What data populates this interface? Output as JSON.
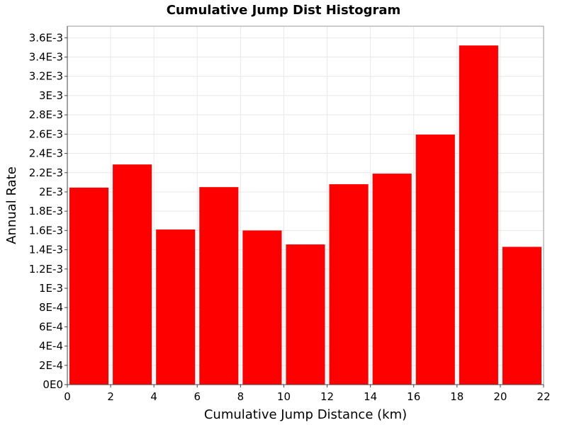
{
  "chart_data": {
    "type": "bar",
    "title": "Cumulative Jump Dist Histogram",
    "xlabel": "Cumulative Jump Distance (km)",
    "ylabel": "Annual Rate",
    "xlim": [
      0,
      22
    ],
    "ylim": [
      0,
      0.00372
    ],
    "x_ticks": [
      0,
      2,
      4,
      6,
      8,
      10,
      12,
      14,
      16,
      18,
      20,
      22
    ],
    "x_tick_labels": [
      "0",
      "2",
      "4",
      "6",
      "8",
      "10",
      "12",
      "14",
      "16",
      "18",
      "20",
      "22"
    ],
    "y_ticks": [
      0,
      0.0002,
      0.0004,
      0.0006,
      0.0008,
      0.001,
      0.0012,
      0.0014,
      0.0016,
      0.0018,
      0.002,
      0.0022,
      0.0024,
      0.0026,
      0.0028,
      0.003,
      0.0032,
      0.0034,
      0.0036
    ],
    "y_tick_labels": [
      "0E0",
      "2E-4",
      "4E-4",
      "6E-4",
      "8E-4",
      "1E-3",
      "1.2E-3",
      "1.4E-3",
      "1.6E-3",
      "1.8E-3",
      "2E-3",
      "2.2E-3",
      "2.4E-3",
      "2.6E-3",
      "2.8E-3",
      "3E-3",
      "3.2E-3",
      "3.4E-3",
      "3.6E-3"
    ],
    "bin_width": 2,
    "bins": [
      {
        "x": 1,
        "value": 0.002045
      },
      {
        "x": 3,
        "value": 0.002285
      },
      {
        "x": 5,
        "value": 0.00161
      },
      {
        "x": 7,
        "value": 0.00205
      },
      {
        "x": 9,
        "value": 0.0016
      },
      {
        "x": 11,
        "value": 0.001455
      },
      {
        "x": 13,
        "value": 0.00208
      },
      {
        "x": 15,
        "value": 0.00219
      },
      {
        "x": 17,
        "value": 0.002595
      },
      {
        "x": 19,
        "value": 0.00352
      },
      {
        "x": 21,
        "value": 0.00143
      }
    ],
    "grid": true,
    "colors": {
      "bar": "#ff0000"
    }
  }
}
